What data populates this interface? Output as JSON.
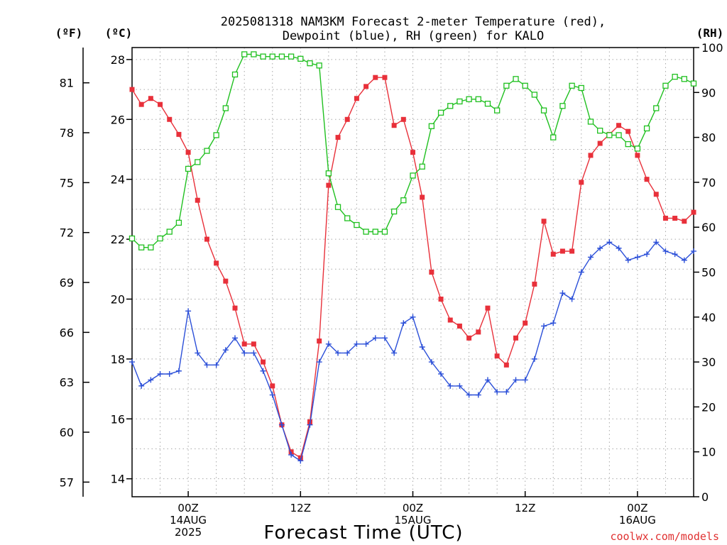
{
  "title_line1": "2025081318 NAM3KM Forecast 2-meter Temperature (red),",
  "title_line2": "Dewpoint (blue), RH (green) for KALO",
  "unit_f": "(ºF)",
  "unit_c": "(ºC)",
  "unit_rh": "(RH)",
  "xlabel": "Forecast Time (UTC)",
  "credit": "coolwx.com/models",
  "chart_data": {
    "type": "line",
    "title": "2025081318 NAM3KM Forecast 2-meter Temperature (red), Dewpoint (blue), RH (green) for KALO",
    "xlabel": "Forecast Time (UTC)",
    "x_unit": "forecast hour from 2025-08-13 18Z",
    "xlim": [
      0,
      60
    ],
    "x_ticks": [
      {
        "x": 6,
        "lines": [
          "00Z",
          "14AUG",
          "2025"
        ]
      },
      {
        "x": 18,
        "lines": [
          "12Z"
        ]
      },
      {
        "x": 30,
        "lines": [
          "00Z",
          "15AUG"
        ]
      },
      {
        "x": 42,
        "lines": [
          "12Z"
        ]
      },
      {
        "x": 54,
        "lines": [
          "00Z",
          "16AUG"
        ]
      }
    ],
    "y_left_celsius": {
      "label": "(ºC)",
      "lim": [
        13.4,
        28.4
      ],
      "ticks": [
        14,
        16,
        18,
        20,
        22,
        24,
        26,
        28
      ]
    },
    "y_left_fahrenheit": {
      "label": "(ºF)",
      "ticks": [
        57,
        60,
        63,
        66,
        69,
        72,
        75,
        78,
        81
      ]
    },
    "y_right_rh": {
      "label": "(RH)",
      "lim": [
        0,
        100
      ],
      "ticks": [
        0,
        10,
        20,
        30,
        40,
        50,
        60,
        70,
        80,
        90,
        100
      ]
    },
    "grid": true,
    "series": [
      {
        "axis": "celsius",
        "color": "#e8303a",
        "marker": "filled-square",
        "x": [
          0,
          1,
          2,
          3,
          4,
          5,
          6,
          7,
          8,
          9,
          10,
          11,
          12,
          13,
          14,
          15,
          16,
          17,
          18,
          19,
          20,
          21,
          22,
          23,
          24,
          25,
          26,
          27,
          28,
          29,
          30,
          31,
          32,
          33,
          34,
          35,
          36,
          37,
          38,
          39,
          40,
          41,
          42,
          43,
          44,
          45,
          46,
          47,
          48,
          49,
          50,
          51,
          52,
          53,
          54,
          55,
          56,
          57,
          58,
          59,
          60
        ],
        "values": [
          27.0,
          26.5,
          26.7,
          26.5,
          26.0,
          25.5,
          24.9,
          23.3,
          22.0,
          21.2,
          20.6,
          19.7,
          18.5,
          18.5,
          17.9,
          17.1,
          15.8,
          14.9,
          14.7,
          15.9,
          18.6,
          23.8,
          25.4,
          26.0,
          26.7,
          27.1,
          27.4,
          27.4,
          25.8,
          26.0,
          24.9,
          23.4,
          20.9,
          20.0,
          19.3,
          19.1,
          18.7,
          18.9,
          19.7,
          18.1,
          17.8,
          18.7,
          19.2,
          20.5,
          22.6,
          21.5,
          21.6,
          21.6,
          23.9,
          24.8,
          25.2,
          25.5,
          25.8,
          25.6,
          24.8,
          24.0,
          23.5,
          22.7,
          22.7,
          22.6,
          22.9
        ]
      },
      {
        "axis": "celsius",
        "color": "#2b4fd8",
        "marker": "plus",
        "x": [
          0,
          1,
          2,
          3,
          4,
          5,
          6,
          7,
          8,
          9,
          10,
          11,
          12,
          13,
          14,
          15,
          16,
          17,
          18,
          19,
          20,
          21,
          22,
          23,
          24,
          25,
          26,
          27,
          28,
          29,
          30,
          31,
          32,
          33,
          34,
          35,
          36,
          37,
          38,
          39,
          40,
          41,
          42,
          43,
          44,
          45,
          46,
          47,
          48,
          49,
          50,
          51,
          52,
          53,
          54,
          55,
          56,
          57,
          58,
          59,
          60
        ],
        "values": [
          17.9,
          17.1,
          17.3,
          17.5,
          17.5,
          17.6,
          19.6,
          18.2,
          17.8,
          17.8,
          18.3,
          18.7,
          18.2,
          18.2,
          17.6,
          16.8,
          15.8,
          14.8,
          14.6,
          15.8,
          17.9,
          18.5,
          18.2,
          18.2,
          18.5,
          18.5,
          18.7,
          18.7,
          18.2,
          19.2,
          19.4,
          18.4,
          17.9,
          17.5,
          17.1,
          17.1,
          16.8,
          16.8,
          17.3,
          16.9,
          16.9,
          17.3,
          17.3,
          18.0,
          19.1,
          19.2,
          20.2,
          20.0,
          20.9,
          21.4,
          21.7,
          21.9,
          21.7,
          21.3,
          21.4,
          21.5,
          21.9,
          21.6,
          21.5,
          21.3,
          21.6
        ]
      },
      {
        "axis": "rh",
        "color": "#20c020",
        "marker": "open-square",
        "x": [
          0,
          1,
          2,
          3,
          4,
          5,
          6,
          7,
          8,
          9,
          10,
          11,
          12,
          13,
          14,
          15,
          16,
          17,
          18,
          19,
          20,
          21,
          22,
          23,
          24,
          25,
          26,
          27,
          28,
          29,
          30,
          31,
          32,
          33,
          34,
          35,
          36,
          37,
          38,
          39,
          40,
          41,
          42,
          43,
          44,
          45,
          46,
          47,
          48,
          49,
          50,
          51,
          52,
          53,
          54,
          55,
          56,
          57,
          58,
          59,
          60
        ],
        "values": [
          57.5,
          55.5,
          55.5,
          57.5,
          59.0,
          61.0,
          73.0,
          74.5,
          77.0,
          80.5,
          86.5,
          94.0,
          98.5,
          98.5,
          98.0,
          98.0,
          98.0,
          98.0,
          97.5,
          96.5,
          96.0,
          72.0,
          64.5,
          62.0,
          60.5,
          59.0,
          59.0,
          59.0,
          63.5,
          66.0,
          71.5,
          73.5,
          82.5,
          85.5,
          87.0,
          88.0,
          88.5,
          88.5,
          87.5,
          86.0,
          91.5,
          93.0,
          91.5,
          89.5,
          86.0,
          80.0,
          87.0,
          91.5,
          91.0,
          83.5,
          81.5,
          80.5,
          80.5,
          78.5,
          77.5,
          82.0,
          86.5,
          91.5,
          93.5,
          93.0,
          92.0
        ]
      }
    ]
  }
}
